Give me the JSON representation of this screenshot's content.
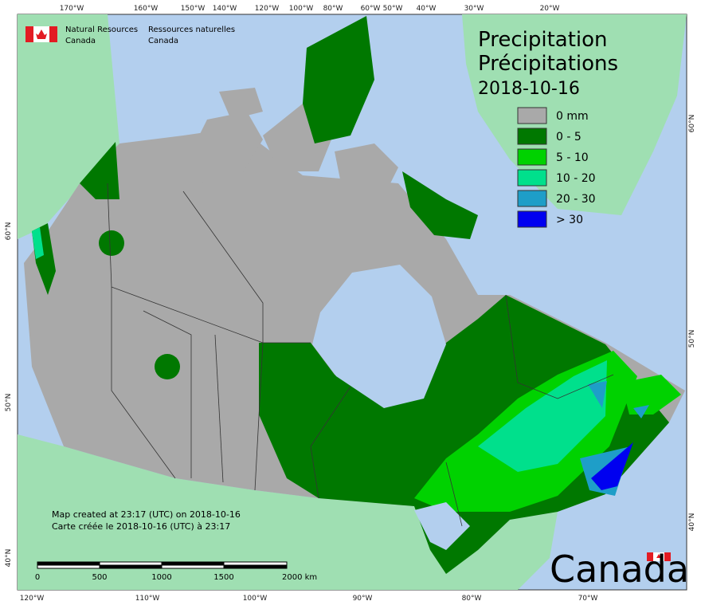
{
  "header": {
    "agency_en": [
      "Natural Resources",
      "Canada"
    ],
    "agency_fr": [
      "Ressources naturelles",
      "Canada"
    ]
  },
  "title": {
    "en": "Precipitation",
    "fr": "Précipitations",
    "date": "2018-10-16"
  },
  "legend": [
    {
      "label": "0 mm",
      "color": "#a9a9a9"
    },
    {
      "label": "0 - 5",
      "color": "#007800"
    },
    {
      "label": "5 - 10",
      "color": "#00d200"
    },
    {
      "label": "10 - 20",
      "color": "#00e08c"
    },
    {
      "label": "20 - 30",
      "color": "#1e9ec8"
    },
    {
      "label": "> 30",
      "color": "#0000f0"
    }
  ],
  "graticule": {
    "top": [
      "170°W",
      "160°W",
      "150°W",
      "140°W",
      "120°W",
      "100°W",
      "80°W",
      "60°W",
      "50°W",
      "40°W",
      "30°W",
      "20°W"
    ],
    "bottom": [
      "120°W",
      "110°W",
      "100°W",
      "90°W",
      "80°W",
      "70°W"
    ],
    "left": [
      "60°N",
      "50°N",
      "40°N"
    ],
    "right": [
      "60°N",
      "50°N",
      "40°N"
    ]
  },
  "footer": {
    "created_en": "Map created at 23:17 (UTC) on 2018-10-16",
    "created_fr": "Carte créée le 2018-10-16 (UTC) à 23:17"
  },
  "scale_bar": [
    "0",
    "500",
    "1000",
    "1500",
    "2000 km"
  ],
  "wordmark": "Canada"
}
